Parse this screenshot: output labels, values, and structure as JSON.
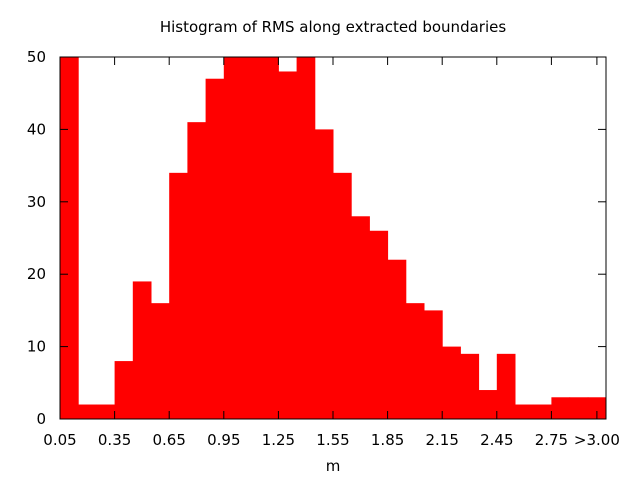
{
  "chart_data": {
    "type": "bar",
    "title": "Histogram of RMS along extracted boundaries",
    "xlabel": "m",
    "ylabel": "",
    "bar_color": "#ff0000",
    "grid": false,
    "xlim": [
      0.05,
      3.05
    ],
    "ylim": [
      0,
      50
    ],
    "bin_width": 0.1,
    "y_ticks": [
      0,
      10,
      20,
      30,
      40,
      50
    ],
    "x_ticks": [
      {
        "value": 0.05,
        "label": "0.05"
      },
      {
        "value": 0.35,
        "label": "0.35"
      },
      {
        "value": 0.65,
        "label": "0.65"
      },
      {
        "value": 0.95,
        "label": "0.95"
      },
      {
        "value": 1.25,
        "label": "1.25"
      },
      {
        "value": 1.55,
        "label": "1.55"
      },
      {
        "value": 1.85,
        "label": "1.85"
      },
      {
        "value": 2.15,
        "label": "2.15"
      },
      {
        "value": 2.45,
        "label": "2.45"
      },
      {
        "value": 2.75,
        "label": "2.75"
      },
      {
        "value": 3.0,
        "label": ">3.00"
      }
    ],
    "bins": [
      {
        "start": 0.05,
        "value": 50
      },
      {
        "start": 0.15,
        "value": 2
      },
      {
        "start": 0.25,
        "value": 2
      },
      {
        "start": 0.35,
        "value": 8
      },
      {
        "start": 0.45,
        "value": 19
      },
      {
        "start": 0.55,
        "value": 16
      },
      {
        "start": 0.65,
        "value": 34
      },
      {
        "start": 0.75,
        "value": 41
      },
      {
        "start": 0.85,
        "value": 47
      },
      {
        "start": 0.95,
        "value": 50
      },
      {
        "start": 1.05,
        "value": 50
      },
      {
        "start": 1.15,
        "value": 50
      },
      {
        "start": 1.25,
        "value": 48
      },
      {
        "start": 1.35,
        "value": 50
      },
      {
        "start": 1.45,
        "value": 40
      },
      {
        "start": 1.55,
        "value": 34
      },
      {
        "start": 1.65,
        "value": 28
      },
      {
        "start": 1.75,
        "value": 26
      },
      {
        "start": 1.85,
        "value": 22
      },
      {
        "start": 1.95,
        "value": 16
      },
      {
        "start": 2.05,
        "value": 15
      },
      {
        "start": 2.15,
        "value": 10
      },
      {
        "start": 2.25,
        "value": 9
      },
      {
        "start": 2.35,
        "value": 4
      },
      {
        "start": 2.45,
        "value": 9
      },
      {
        "start": 2.55,
        "value": 2
      },
      {
        "start": 2.65,
        "value": 2
      },
      {
        "start": 2.75,
        "value": 3
      },
      {
        "start": 2.85,
        "value": 3
      },
      {
        "start": 2.95,
        "value": 3
      }
    ]
  }
}
